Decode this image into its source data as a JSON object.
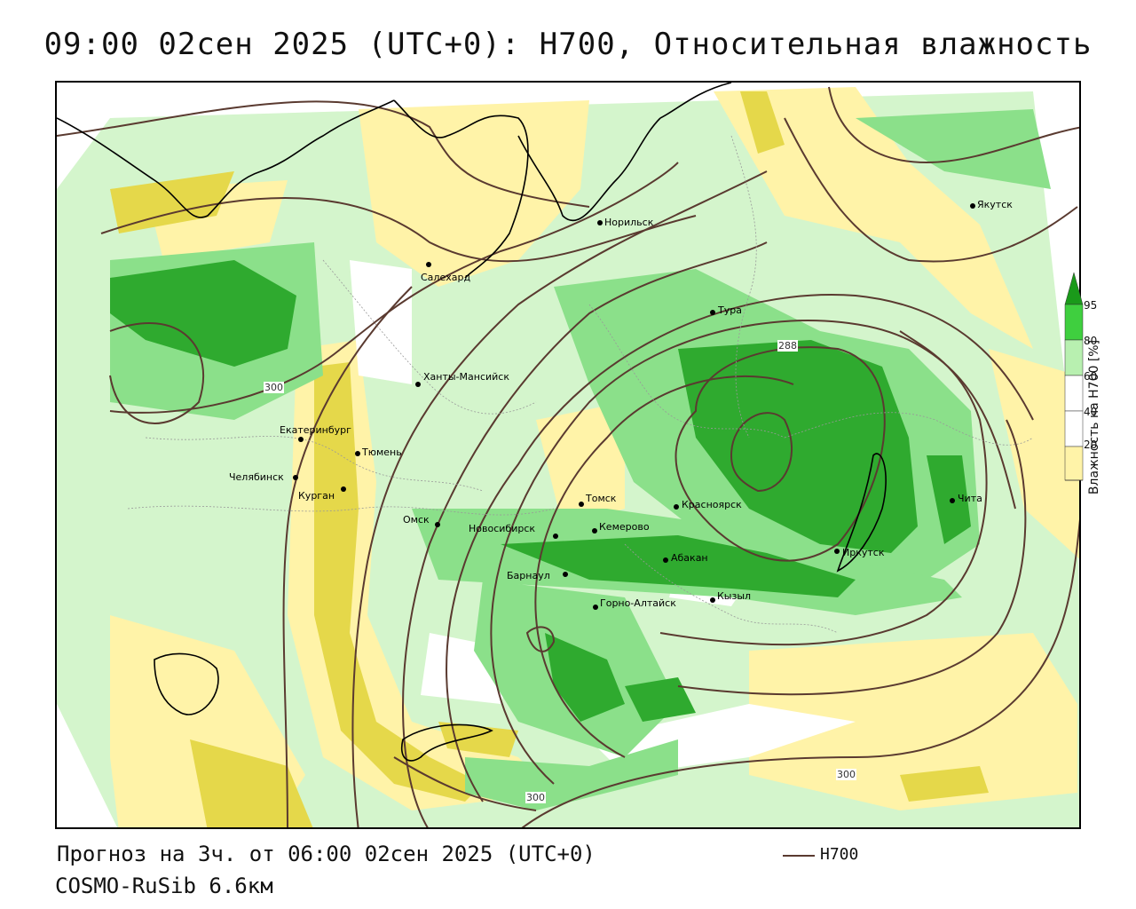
{
  "header": {
    "title": "09:00 02сен 2025 (UTC+0): H700, Относительная влажность"
  },
  "footer": {
    "forecast": "Прогноз на 3ч. от 06:00 02сен 2025 (UTC+0)",
    "model": "COSMO-RuSib 6.6км"
  },
  "legend": {
    "line_label": "H700",
    "line_color": "#5a3a30"
  },
  "colorbar": {
    "title": "Влажность на H700 [%]",
    "ticks": [
      "95",
      "80",
      "60",
      "40",
      "20"
    ],
    "colors": {
      "c95": "#1a9a1a",
      "c80": "#3fcf3f",
      "c60": "#b8f0b0",
      "c40": "#ffffff",
      "c20": "#fff3a8",
      "c0": "#e5d84a"
    }
  },
  "contour_labels": [
    "300",
    "288",
    "300",
    "300"
  ],
  "cities": [
    {
      "name": "Норильск"
    },
    {
      "name": "Якутск"
    },
    {
      "name": "Салехард"
    },
    {
      "name": "Тура"
    },
    {
      "name": "Ханты-Мансийск"
    },
    {
      "name": "Екатеринбург"
    },
    {
      "name": "Тюмень"
    },
    {
      "name": "Челябинск"
    },
    {
      "name": "Курган"
    },
    {
      "name": "Омск"
    },
    {
      "name": "Томск"
    },
    {
      "name": "Новосибирск"
    },
    {
      "name": "Кемерово"
    },
    {
      "name": "Красноярск"
    },
    {
      "name": "Абакан"
    },
    {
      "name": "Барнаул"
    },
    {
      "name": "Горно-Алтайск"
    },
    {
      "name": "Кызыл"
    },
    {
      "name": "Иркутск"
    },
    {
      "name": "Чита"
    }
  ]
}
